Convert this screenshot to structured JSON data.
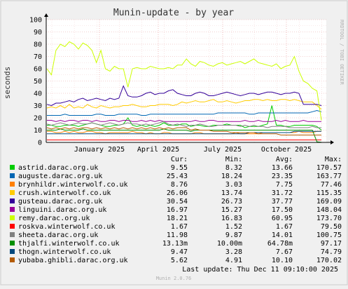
{
  "chart_data": {
    "type": "line",
    "title": "Munin-update - by year",
    "ylabel": "seconds",
    "watermark": "RRDTOOL / TOBI OETIKER",
    "ylim": [
      0,
      100
    ],
    "yticks": [
      0,
      10,
      20,
      30,
      40,
      50,
      60,
      70,
      80,
      90,
      100
    ],
    "xticks": [
      "January 2025",
      "April 2025",
      "July 2025",
      "October 2025"
    ],
    "grid": true,
    "legend_columns": [
      "Cur:",
      "Min:",
      "Avg:",
      "Max:"
    ],
    "series": [
      {
        "name": "astrid.darac.org.uk",
        "color": "#00cc00",
        "cur": "9.55",
        "min": "8.32",
        "avg": "13.66",
        "max": "170.57",
        "values": [
          14,
          14,
          13,
          13,
          14,
          14,
          14,
          13,
          14,
          15,
          16,
          15,
          14,
          13,
          13,
          14,
          14,
          15,
          20,
          14,
          13,
          14,
          13,
          14,
          13,
          14,
          16,
          14,
          14,
          14,
          15,
          15,
          13,
          14,
          14,
          13,
          13,
          14,
          14,
          14,
          15,
          14,
          14,
          14,
          12,
          13,
          13,
          13,
          14,
          15,
          30,
          14,
          14,
          13,
          13,
          14,
          14,
          14,
          14,
          14,
          13,
          10
        ]
      },
      {
        "name": "auguste.darac.org.uk",
        "color": "#0066b3",
        "cur": "25.43",
        "min": "18.24",
        "avg": "23.35",
        "max": "163.77",
        "values": [
          22,
          22,
          22,
          22,
          23,
          22,
          22,
          22,
          22,
          22,
          22,
          23,
          23,
          22,
          22,
          22,
          23,
          23,
          23,
          23,
          23,
          22,
          22,
          23,
          23,
          23,
          23,
          23,
          23,
          23,
          23,
          23,
          23,
          23,
          23,
          23,
          23,
          23,
          24,
          24,
          24,
          24,
          24,
          24,
          24,
          23,
          23,
          24,
          24,
          24,
          24,
          24,
          24,
          24,
          24,
          24,
          24,
          24,
          24,
          25,
          26,
          25
        ]
      },
      {
        "name": "brynhildr.winterwolf.co.uk",
        "color": "#ff8000",
        "cur": "8.76",
        "min": "3.03",
        "avg": "7.75",
        "max": "77.46",
        "values": [
          9,
          9,
          8,
          8,
          9,
          8,
          9,
          8,
          8,
          9,
          9,
          8,
          8,
          7,
          8,
          8,
          8,
          8,
          8,
          9,
          8,
          8,
          7,
          8,
          7,
          7,
          8,
          8,
          7,
          7,
          7,
          7,
          7,
          8,
          8,
          7,
          7,
          7,
          7,
          7,
          7,
          7,
          8,
          7,
          7,
          7,
          7,
          7,
          8,
          8,
          8,
          8,
          8,
          8,
          8,
          8,
          9,
          8,
          8,
          8,
          9,
          9
        ]
      },
      {
        "name": "crush.winterwolf.co.uk",
        "color": "#ffcc00",
        "cur": "26.06",
        "min": "13.74",
        "avg": "31.72",
        "max": "115.35",
        "values": [
          28,
          29,
          28,
          30,
          28,
          31,
          28,
          29,
          28,
          31,
          29,
          28,
          30,
          29,
          28,
          29,
          29,
          30,
          30,
          31,
          30,
          29,
          29,
          30,
          30,
          31,
          31,
          31,
          30,
          31,
          33,
          32,
          33,
          34,
          33,
          33,
          34,
          35,
          33,
          33,
          34,
          33,
          32,
          33,
          34,
          34,
          35,
          35,
          34,
          35,
          34,
          34,
          35,
          35,
          34,
          35,
          34,
          33,
          33,
          33,
          30,
          27
        ]
      },
      {
        "name": "gusteau.darac.org.uk",
        "color": "#330099",
        "cur": "30.54",
        "min": "26.73",
        "avg": "37.77",
        "max": "169.09",
        "values": [
          31,
          30,
          32,
          32,
          33,
          34,
          33,
          35,
          36,
          34,
          35,
          36,
          35,
          34,
          36,
          35,
          36,
          46,
          38,
          37,
          37,
          38,
          40,
          41,
          39,
          40,
          40,
          42,
          43,
          40,
          39,
          38,
          38,
          40,
          41,
          40,
          38,
          38,
          39,
          40,
          41,
          40,
          39,
          38,
          39,
          40,
          40,
          39,
          40,
          41,
          41,
          40,
          39,
          40,
          40,
          41,
          40,
          31,
          31,
          31,
          31,
          30
        ]
      },
      {
        "name": "linguini.darac.org.uk",
        "color": "#990099",
        "cur": "16.97",
        "min": "15.27",
        "avg": "17.50",
        "max": "148.04",
        "values": [
          18,
          18,
          17,
          18,
          17,
          18,
          18,
          17,
          18,
          18,
          17,
          18,
          17,
          17,
          18,
          18,
          17,
          18,
          18,
          17,
          17,
          18,
          17,
          18,
          17,
          18,
          17,
          17,
          17,
          17,
          17,
          17,
          17,
          18,
          17,
          17,
          18,
          18,
          17,
          17,
          17,
          17,
          17,
          17,
          18,
          17,
          17,
          18,
          17,
          17,
          17,
          18,
          17,
          18,
          17,
          17,
          17,
          18,
          17,
          17,
          17,
          17
        ]
      },
      {
        "name": "remy.darac.org.uk",
        "color": "#ccff00",
        "cur": "18.21",
        "min": "16.83",
        "avg": "60.95",
        "max": "173.70",
        "values": [
          60,
          55,
          75,
          80,
          78,
          82,
          80,
          76,
          81,
          79,
          75,
          65,
          75,
          60,
          58,
          62,
          60,
          60,
          45,
          60,
          61,
          60,
          60,
          62,
          61,
          60,
          60,
          61,
          60,
          63,
          63,
          68,
          64,
          62,
          66,
          65,
          63,
          62,
          64,
          65,
          63,
          64,
          65,
          66,
          64,
          66,
          68,
          65,
          64,
          63,
          62,
          64,
          60,
          62,
          63,
          70,
          58,
          50,
          48,
          44,
          42,
          18
        ]
      },
      {
        "name": "roskva.winterwolf.co.uk",
        "color": "#ff0000",
        "cur": "1.67",
        "min": "1.52",
        "avg": "1.67",
        "max": "79.50",
        "values": [
          2,
          2,
          2,
          2,
          2,
          2,
          2,
          2,
          2,
          2,
          2,
          2,
          2,
          2,
          2,
          2,
          2,
          2,
          2,
          2,
          2,
          2,
          2,
          2,
          2,
          2,
          2,
          2,
          2,
          2,
          2,
          2,
          2,
          2,
          2,
          2,
          2,
          2,
          2,
          2,
          2,
          2,
          2,
          2,
          2,
          2,
          2,
          2,
          2,
          2,
          2,
          2,
          2,
          2,
          2,
          2,
          2,
          2,
          2,
          2,
          2,
          2
        ]
      },
      {
        "name": "sheeta.darac.org.uk",
        "color": "#808080",
        "cur": "11.98",
        "min": "9.87",
        "avg": "14.01",
        "max": "100.75",
        "values": [
          15,
          14,
          15,
          16,
          15,
          14,
          15,
          16,
          15,
          15,
          16,
          15,
          14,
          15,
          16,
          15,
          14,
          15,
          16,
          15,
          15,
          14,
          15,
          14,
          15,
          16,
          17,
          15,
          14,
          15,
          14,
          13,
          14,
          14,
          15,
          14,
          13,
          13,
          14,
          14,
          14,
          14,
          14,
          13,
          14,
          13,
          14,
          13,
          13,
          12,
          13,
          13,
          13,
          13,
          12,
          12,
          12,
          12,
          12,
          13,
          12,
          12
        ]
      },
      {
        "name": "thjalfi.winterwolf.co.uk",
        "color": "#008f00",
        "cur": "13.13m",
        "min": "10.00m",
        "avg": "64.78m",
        "max": "97.17",
        "values": [
          10,
          10,
          10,
          11,
          10,
          10,
          10,
          10,
          11,
          10,
          10,
          10,
          10,
          10,
          10,
          10,
          10,
          10,
          10,
          10,
          10,
          10,
          10,
          10,
          10,
          10,
          11,
          10,
          10,
          10,
          10,
          10,
          9,
          10,
          10,
          10,
          10,
          10,
          10,
          10,
          10,
          10,
          10,
          10,
          10,
          10,
          10,
          10,
          10,
          10,
          10,
          10,
          10,
          10,
          10,
          10,
          10,
          10,
          10,
          10,
          0.5,
          0.2
        ]
      },
      {
        "name": "thogn.winterwolf.co.uk",
        "color": "#00487d",
        "cur": "9.47",
        "min": "3.28",
        "avg": "7.67",
        "max": "74.79",
        "values": [
          7,
          7,
          7,
          7,
          7,
          7,
          7,
          7,
          7,
          7,
          7,
          7,
          7,
          7,
          7,
          7,
          7,
          7,
          7,
          7,
          7,
          7,
          7,
          7,
          7,
          7,
          7,
          7,
          7,
          7,
          7,
          7,
          7,
          7,
          7,
          7,
          7,
          7,
          7,
          7,
          7,
          7,
          7,
          7,
          7,
          8,
          8,
          8,
          8,
          8,
          8,
          8,
          8,
          8,
          8,
          9,
          9,
          9,
          9,
          9,
          9,
          9
        ]
      },
      {
        "name": "yubaba.ghibli.darac.org.uk",
        "color": "#b35a00",
        "cur": "5.62",
        "min": "4.91",
        "avg": "10.10",
        "max": "170.02",
        "values": [
          12,
          11,
          12,
          11,
          12,
          11,
          12,
          11,
          12,
          12,
          11,
          12,
          11,
          12,
          11,
          12,
          11,
          12,
          11,
          12,
          11,
          12,
          11,
          12,
          11,
          12,
          11,
          12,
          11,
          12,
          12,
          12,
          10,
          11,
          10,
          10,
          10,
          9,
          9,
          9,
          9,
          8,
          8,
          8,
          8,
          8,
          8,
          7,
          7,
          7,
          7,
          7,
          6,
          6,
          6,
          6,
          6,
          6,
          6,
          6,
          6,
          6
        ]
      }
    ],
    "last_update": "Last update: Thu Dec 11 09:10:00 2025",
    "footer": "Munin 2.0.76"
  }
}
